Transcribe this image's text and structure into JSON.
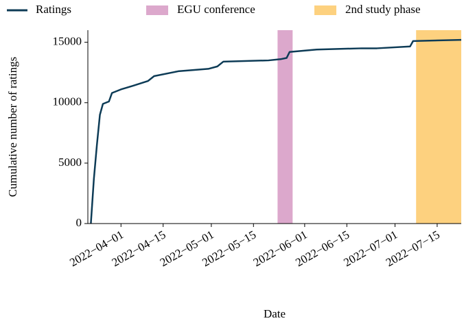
{
  "chart_data": {
    "type": "line",
    "x_label": "Date",
    "y_label": "Cumulative number of ratings",
    "xlim": [
      "2022-03-21",
      "2022-07-23"
    ],
    "ylim": [
      0,
      16000
    ],
    "xticks": [
      {
        "value": "2022-04-01",
        "label": "2022−04−01"
      },
      {
        "value": "2022-04-15",
        "label": "2022−04−15"
      },
      {
        "value": "2022-05-01",
        "label": "2022−05−01"
      },
      {
        "value": "2022-05-15",
        "label": "2022−05−15"
      },
      {
        "value": "2022-06-01",
        "label": "2022−06−01"
      },
      {
        "value": "2022-06-15",
        "label": "2022−06−15"
      },
      {
        "value": "2022-07-01",
        "label": "2022−07−01"
      },
      {
        "value": "2022-07-15",
        "label": "2022−07−15"
      }
    ],
    "yticks": [
      0,
      5000,
      10000,
      15000
    ],
    "series": [
      {
        "name": "Ratings",
        "color": "#0d3b56",
        "x": [
          "2022-03-22",
          "2022-03-23",
          "2022-03-24",
          "2022-03-25",
          "2022-03-26",
          "2022-03-28",
          "2022-03-29",
          "2022-04-01",
          "2022-04-05",
          "2022-04-10",
          "2022-04-12",
          "2022-04-20",
          "2022-04-30",
          "2022-05-03",
          "2022-05-05",
          "2022-05-20",
          "2022-05-24",
          "2022-05-26",
          "2022-05-27",
          "2022-06-05",
          "2022-06-20",
          "2022-06-25",
          "2022-07-06",
          "2022-07-07",
          "2022-07-23"
        ],
        "values": [
          0,
          3700,
          6500,
          9000,
          9900,
          10100,
          10800,
          11100,
          11400,
          11800,
          12200,
          12600,
          12800,
          13000,
          13400,
          13500,
          13600,
          13700,
          14200,
          14400,
          14500,
          14500,
          14650,
          15100,
          15200
        ]
      }
    ],
    "spans": [
      {
        "name": "EGU conference",
        "color": "#dca8cc",
        "start": "2022-05-23",
        "end": "2022-05-28"
      },
      {
        "name": "2nd study phase",
        "color": "#fdd17f",
        "start": "2022-07-08",
        "end": "2022-07-23"
      }
    ]
  }
}
